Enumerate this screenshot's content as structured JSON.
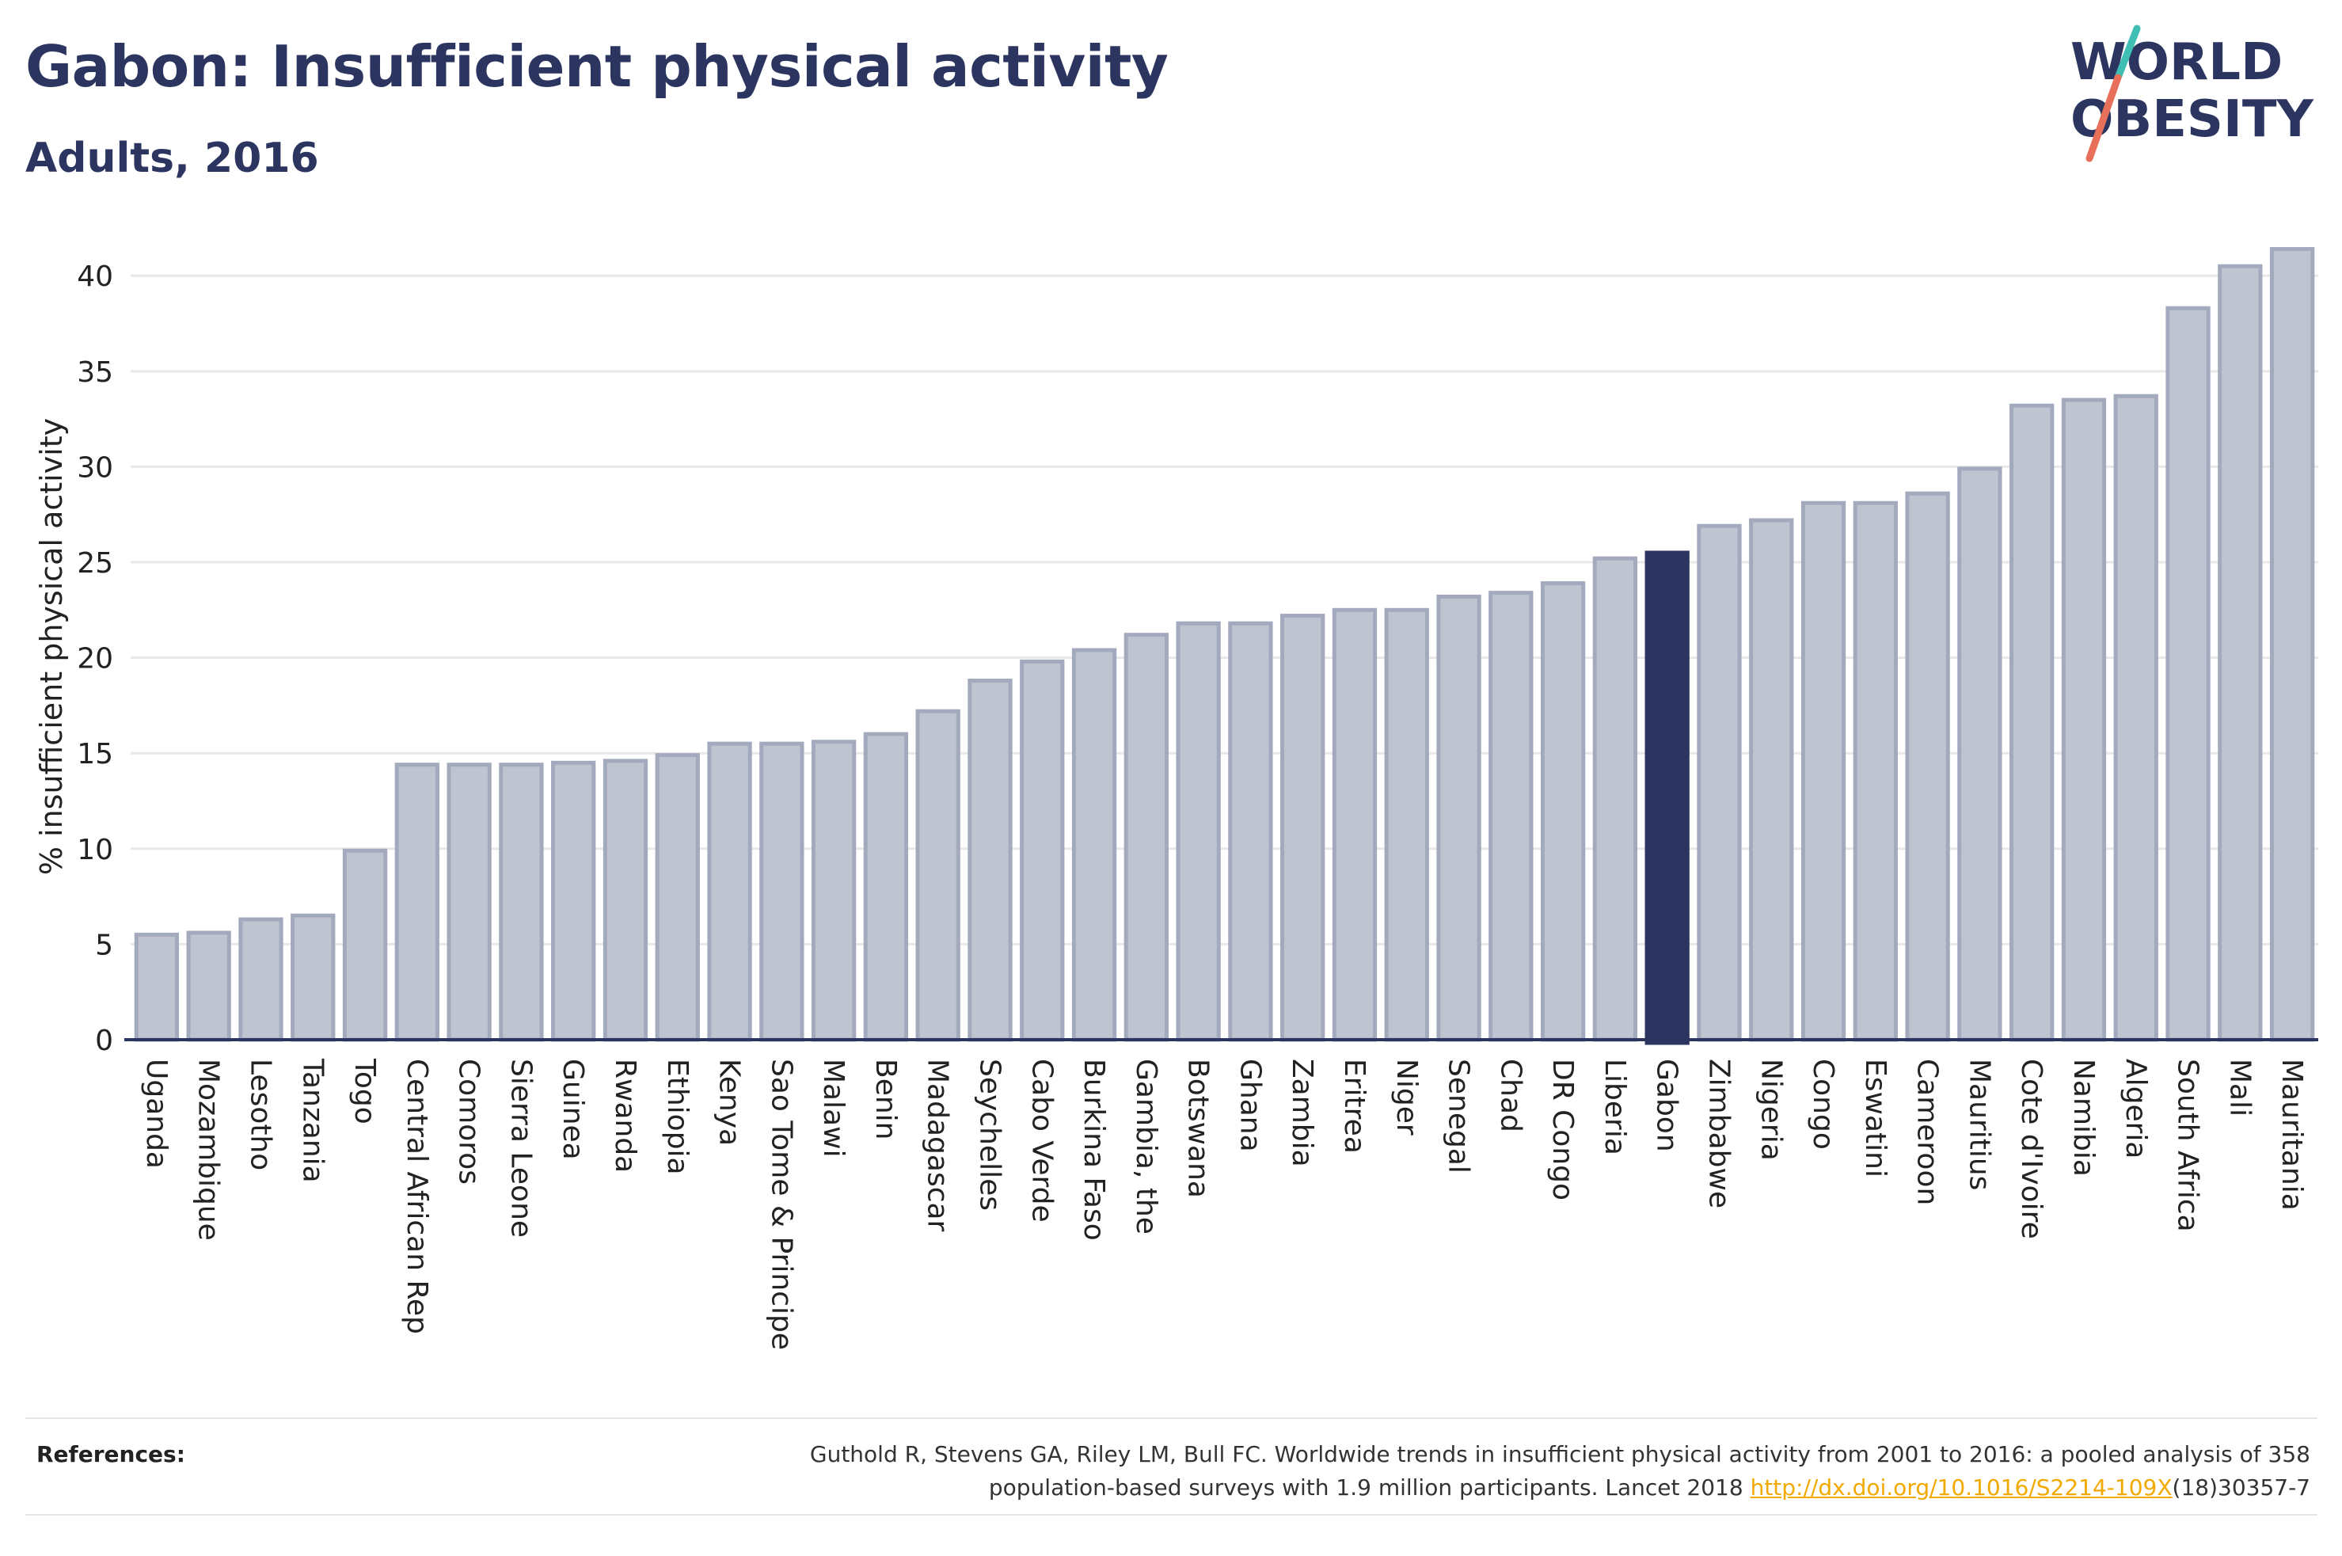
{
  "header": {
    "title": "Gabon: Insufficient physical activity",
    "subtitle": "Adults, 2016"
  },
  "logo": {
    "line1": "WORLD",
    "line2": "OBESITY",
    "colors": {
      "text": "#2b3560",
      "slash_teal": "#3fbfb4",
      "slash_coral": "#e8705a"
    }
  },
  "colors": {
    "bar_fill": "#c0c4d1",
    "bar_stroke": "#a4aabd",
    "highlight": "#2b3560",
    "grid": "#e8e8e8",
    "axis": "#2b3560",
    "text": "#222222"
  },
  "chart_data": {
    "type": "bar",
    "title": "Gabon: Insufficient physical activity",
    "subtitle": "Adults, 2016",
    "ylabel": "% insufficient physical activity",
    "xlabel": "",
    "ylim": [
      0,
      42
    ],
    "yticks": [
      0,
      5,
      10,
      15,
      20,
      25,
      30,
      35,
      40
    ],
    "grid": true,
    "highlight": "Gabon",
    "categories": [
      "Uganda",
      "Mozambique",
      "Lesotho",
      "Tanzania",
      "Togo",
      "Central African Rep",
      "Comoros",
      "Sierra Leone",
      "Guinea",
      "Rwanda",
      "Ethiopia",
      "Kenya",
      "Sao Tome & Principe",
      "Malawi",
      "Benin",
      "Madagascar",
      "Seychelles",
      "Cabo Verde",
      "Burkina Faso",
      "Gambia, the",
      "Botswana",
      "Ghana",
      "Zambia",
      "Eritrea",
      "Niger",
      "Senegal",
      "Chad",
      "DR Congo",
      "Liberia",
      "Gabon",
      "Zimbabwe",
      "Nigeria",
      "Congo",
      "Eswatini",
      "Cameroon",
      "Mauritius",
      "Cote d'Ivoire",
      "Namibia",
      "Algeria",
      "South Africa",
      "Mali",
      "Mauritania"
    ],
    "values": [
      5.5,
      5.6,
      6.3,
      6.5,
      9.9,
      14.4,
      14.4,
      14.4,
      14.5,
      14.6,
      14.9,
      15.5,
      15.5,
      15.6,
      16.0,
      17.2,
      18.8,
      19.8,
      20.4,
      21.2,
      21.8,
      21.8,
      22.2,
      22.5,
      22.5,
      23.2,
      23.4,
      23.9,
      25.2,
      25.5,
      26.9,
      27.2,
      28.1,
      28.1,
      28.6,
      29.9,
      33.2,
      33.5,
      33.7,
      38.3,
      40.5,
      41.4
    ]
  },
  "references": {
    "label": "References:",
    "line1": "Guthold R, Stevens GA, Riley LM, Bull FC. Worldwide trends in insufficient physical activity from 2001 to 2016: a pooled analysis of 358",
    "line2_prefix": "population-based surveys with 1.9 million participants. Lancet 2018 ",
    "link": "http://dx.doi.org/10.1016/S2214-109X",
    "line2_suffix": "(18)30357-7"
  }
}
